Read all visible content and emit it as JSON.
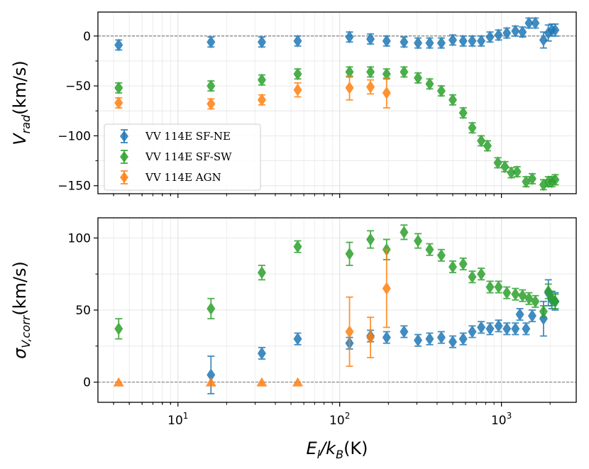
{
  "chart_data": {
    "type": "scatter",
    "x_label": {
      "main": "E",
      "sub1": "l",
      "mid": "/k",
      "sub2": "B",
      "tail": "(K)"
    },
    "x_scale": "log",
    "x_range": [
      3.2,
      2900
    ],
    "x_ticks": [
      {
        "value": 10,
        "base": "10",
        "exp": "1"
      },
      {
        "value": 100,
        "base": "10",
        "exp": "2"
      },
      {
        "value": 1000,
        "base": "10",
        "exp": "3"
      }
    ],
    "legend": {
      "position": "lower-left",
      "entries": [
        "VV 114E SF-NE",
        "VV 114E SF-SW",
        "VV 114E AGN"
      ]
    },
    "colors": {
      "SF-NE": "#1f77b4",
      "SF-SW": "#2ca02c",
      "AGN": "#ff7f0e"
    },
    "panels": [
      {
        "name": "top",
        "y_label": {
          "main": "V",
          "sub": "rad",
          "tail": "(km/s)"
        },
        "y_range": [
          -158,
          24
        ],
        "y_ticks": [
          "0",
          "−50",
          "−100",
          "−150"
        ],
        "y_tick_values": [
          0,
          -50,
          -100,
          -150
        ],
        "zero_line": true,
        "series": [
          {
            "name": "VV 114E SF-NE",
            "points": [
              {
                "x": 4.3,
                "y": -9,
                "err": 5
              },
              {
                "x": 16,
                "y": -6,
                "err": 5
              },
              {
                "x": 33,
                "y": -6,
                "err": 5
              },
              {
                "x": 55,
                "y": -5,
                "err": 5
              },
              {
                "x": 115,
                "y": -1,
                "err": 5
              },
              {
                "x": 155,
                "y": -3,
                "err": 5
              },
              {
                "x": 195,
                "y": -5,
                "err": 5
              },
              {
                "x": 250,
                "y": -6,
                "err": 5
              },
              {
                "x": 305,
                "y": -7,
                "err": 5
              },
              {
                "x": 360,
                "y": -7,
                "err": 5
              },
              {
                "x": 425,
                "y": -7,
                "err": 5
              },
              {
                "x": 500,
                "y": -4,
                "err": 5
              },
              {
                "x": 580,
                "y": -5,
                "err": 5
              },
              {
                "x": 660,
                "y": -5,
                "err": 5
              },
              {
                "x": 750,
                "y": -5,
                "err": 5
              },
              {
                "x": 850,
                "y": -1,
                "err": 5
              },
              {
                "x": 960,
                "y": 1,
                "err": 5
              },
              {
                "x": 1080,
                "y": 3,
                "err": 5
              },
              {
                "x": 1220,
                "y": 5,
                "err": 5
              },
              {
                "x": 1350,
                "y": 4,
                "err": 5
              },
              {
                "x": 1480,
                "y": 13,
                "err": 5
              },
              {
                "x": 1620,
                "y": 13,
                "err": 5
              },
              {
                "x": 1820,
                "y": -4,
                "err": 8
              },
              {
                "x": 1950,
                "y": 3,
                "err": 8
              },
              {
                "x": 2050,
                "y": 6,
                "err": 6
              },
              {
                "x": 2150,
                "y": 6,
                "err": 6
              }
            ]
          },
          {
            "name": "VV 114E SF-SW",
            "points": [
              {
                "x": 4.3,
                "y": -52,
                "err": 5
              },
              {
                "x": 16,
                "y": -50,
                "err": 5
              },
              {
                "x": 33,
                "y": -44,
                "err": 5
              },
              {
                "x": 55,
                "y": -38,
                "err": 5
              },
              {
                "x": 115,
                "y": -36,
                "err": 5
              },
              {
                "x": 155,
                "y": -36,
                "err": 5
              },
              {
                "x": 195,
                "y": -38,
                "err": 5
              },
              {
                "x": 250,
                "y": -36,
                "err": 5
              },
              {
                "x": 305,
                "y": -42,
                "err": 5
              },
              {
                "x": 360,
                "y": -48,
                "err": 5
              },
              {
                "x": 425,
                "y": -55,
                "err": 5
              },
              {
                "x": 500,
                "y": -64,
                "err": 5
              },
              {
                "x": 580,
                "y": -77,
                "err": 5
              },
              {
                "x": 660,
                "y": -92,
                "err": 5
              },
              {
                "x": 750,
                "y": -105,
                "err": 5
              },
              {
                "x": 820,
                "y": -110,
                "err": 5
              },
              {
                "x": 950,
                "y": -127,
                "err": 5
              },
              {
                "x": 1050,
                "y": -131,
                "err": 5
              },
              {
                "x": 1150,
                "y": -137,
                "err": 5
              },
              {
                "x": 1250,
                "y": -136,
                "err": 5
              },
              {
                "x": 1420,
                "y": -146,
                "err": 5
              },
              {
                "x": 1550,
                "y": -143,
                "err": 5
              },
              {
                "x": 1820,
                "y": -149,
                "err": 5
              },
              {
                "x": 1950,
                "y": -146,
                "err": 5
              },
              {
                "x": 2050,
                "y": -146,
                "err": 5
              },
              {
                "x": 2150,
                "y": -144,
                "err": 5
              }
            ]
          },
          {
            "name": "VV 114E AGN",
            "points": [
              {
                "x": 4.3,
                "y": -67,
                "err": 5
              },
              {
                "x": 16,
                "y": -68,
                "err": 5
              },
              {
                "x": 33,
                "y": -64,
                "err": 5
              },
              {
                "x": 55,
                "y": -54,
                "err": 7
              },
              {
                "x": 115,
                "y": -52,
                "err": 12
              },
              {
                "x": 155,
                "y": -51,
                "err": 7
              },
              {
                "x": 195,
                "y": -57,
                "err": 15
              }
            ]
          }
        ]
      },
      {
        "name": "bottom",
        "y_label": {
          "main": "σ",
          "sub": "V,corr",
          "tail": "(km/s)"
        },
        "y_range": [
          -14,
          114
        ],
        "y_ticks": [
          "0",
          "50",
          "100"
        ],
        "y_tick_values": [
          0,
          50,
          100
        ],
        "zero_line": true,
        "series": [
          {
            "name": "VV 114E SF-NE",
            "points": [
              {
                "x": 16,
                "y": 5,
                "err": 13
              },
              {
                "x": 33,
                "y": 20,
                "err": 4
              },
              {
                "x": 55,
                "y": 30,
                "err": 4
              },
              {
                "x": 115,
                "y": 27,
                "err": 4
              },
              {
                "x": 155,
                "y": 32,
                "err": 4
              },
              {
                "x": 195,
                "y": 31,
                "err": 4
              },
              {
                "x": 250,
                "y": 35,
                "err": 4
              },
              {
                "x": 305,
                "y": 29,
                "err": 4
              },
              {
                "x": 360,
                "y": 30,
                "err": 4
              },
              {
                "x": 425,
                "y": 31,
                "err": 4
              },
              {
                "x": 500,
                "y": 28,
                "err": 4
              },
              {
                "x": 580,
                "y": 30,
                "err": 4
              },
              {
                "x": 660,
                "y": 35,
                "err": 4
              },
              {
                "x": 750,
                "y": 38,
                "err": 4
              },
              {
                "x": 850,
                "y": 37,
                "err": 4
              },
              {
                "x": 960,
                "y": 39,
                "err": 4
              },
              {
                "x": 1080,
                "y": 37,
                "err": 4
              },
              {
                "x": 1220,
                "y": 37,
                "err": 4
              },
              {
                "x": 1300,
                "y": 47,
                "err": 4
              },
              {
                "x": 1420,
                "y": 37,
                "err": 4
              },
              {
                "x": 1550,
                "y": 46,
                "err": 4
              },
              {
                "x": 1820,
                "y": 44,
                "err": 12
              },
              {
                "x": 1950,
                "y": 62,
                "err": 9
              },
              {
                "x": 2050,
                "y": 57,
                "err": 6
              },
              {
                "x": 2150,
                "y": 56,
                "err": 6
              }
            ]
          },
          {
            "name": "VV 114E SF-SW",
            "points": [
              {
                "x": 4.3,
                "y": 37,
                "err": 7
              },
              {
                "x": 16,
                "y": 51,
                "err": 7
              },
              {
                "x": 33,
                "y": 76,
                "err": 5
              },
              {
                "x": 55,
                "y": 94,
                "err": 4
              },
              {
                "x": 115,
                "y": 89,
                "err": 8
              },
              {
                "x": 155,
                "y": 99,
                "err": 6
              },
              {
                "x": 195,
                "y": 92,
                "err": 7
              },
              {
                "x": 250,
                "y": 104,
                "err": 5
              },
              {
                "x": 305,
                "y": 98,
                "err": 5
              },
              {
                "x": 360,
                "y": 92,
                "err": 4
              },
              {
                "x": 425,
                "y": 88,
                "err": 4
              },
              {
                "x": 500,
                "y": 80,
                "err": 4
              },
              {
                "x": 580,
                "y": 82,
                "err": 4
              },
              {
                "x": 660,
                "y": 73,
                "err": 4
              },
              {
                "x": 750,
                "y": 75,
                "err": 4
              },
              {
                "x": 850,
                "y": 66,
                "err": 4
              },
              {
                "x": 960,
                "y": 66,
                "err": 4
              },
              {
                "x": 1080,
                "y": 62,
                "err": 4
              },
              {
                "x": 1220,
                "y": 61,
                "err": 4
              },
              {
                "x": 1350,
                "y": 60,
                "err": 4
              },
              {
                "x": 1480,
                "y": 58,
                "err": 4
              },
              {
                "x": 1620,
                "y": 56,
                "err": 4
              },
              {
                "x": 1820,
                "y": 49,
                "err": 4
              },
              {
                "x": 1950,
                "y": 63,
                "err": 5
              },
              {
                "x": 2050,
                "y": 58,
                "err": 5
              },
              {
                "x": 2150,
                "y": 56,
                "err": 5
              }
            ]
          },
          {
            "name": "VV 114E AGN",
            "points": [
              {
                "x": 115,
                "y": 35,
                "err": 24
              },
              {
                "x": 155,
                "y": 31,
                "err": 14
              },
              {
                "x": 195,
                "y": 65,
                "err": 27
              }
            ],
            "upper_limits": [
              {
                "x": 4.3,
                "y": 0
              },
              {
                "x": 16,
                "y": 0
              },
              {
                "x": 33,
                "y": 0
              },
              {
                "x": 55,
                "y": 0
              }
            ]
          }
        ]
      }
    ]
  }
}
